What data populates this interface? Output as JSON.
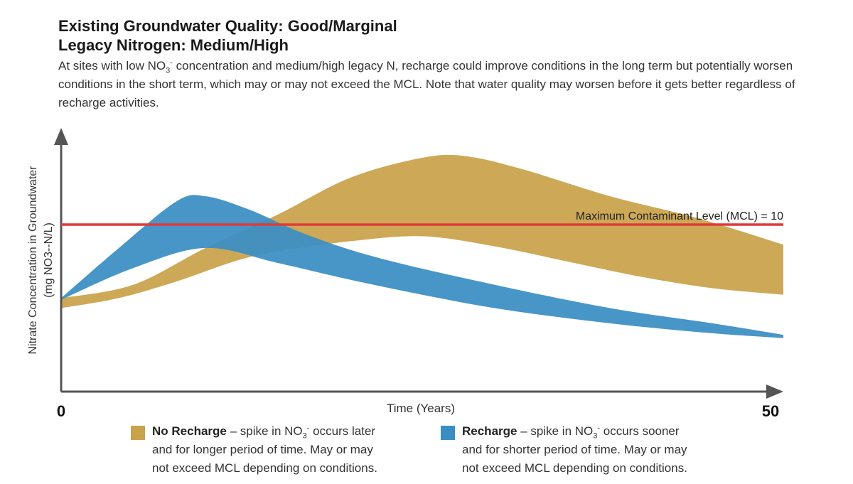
{
  "header": {
    "title_line1": "Existing Groundwater Quality: Good/Marginal",
    "title_line2": "Legacy Nitrogen: Medium/High",
    "desc_part1": "At sites with low NO",
    "desc_sub": "3",
    "desc_sup": "-",
    "desc_part2": " concentration and medium/high legacy N, recharge could improve conditions in the long term but potentially worsen conditions in the short term, which may or may not exceed the MCL. Note that water quality may worsen before it gets better regardless of recharge activities."
  },
  "chart_data": {
    "type": "area",
    "xlabel": "Time (Years)",
    "ylabel_line1": "Nitrate Concentration in Groundwater",
    "ylabel_line2": "(mg NO3--N/L)",
    "x_tick_min": "0",
    "x_tick_max": "50",
    "xlim": [
      0,
      50
    ],
    "mcl_label": "Maximum Contaminant Level (MCL) = 10",
    "mcl_value": 10,
    "mcl_color": "#e03a3a",
    "series": [
      {
        "name": "No Recharge",
        "color": "#c9a24a",
        "upper": [
          [
            0,
            5.6
          ],
          [
            5,
            6.4
          ],
          [
            10,
            8.6
          ],
          [
            15,
            10.6
          ],
          [
            20,
            12.8
          ],
          [
            25,
            14.0
          ],
          [
            28,
            14.1
          ],
          [
            32,
            13.3
          ],
          [
            38,
            11.7
          ],
          [
            44,
            10.4
          ],
          [
            50,
            8.8
          ]
        ],
        "lower": [
          [
            0,
            5.0
          ],
          [
            4,
            5.6
          ],
          [
            8,
            6.6
          ],
          [
            12,
            7.8
          ],
          [
            15,
            8.4
          ],
          [
            20,
            9.0
          ],
          [
            25,
            9.3
          ],
          [
            30,
            8.7
          ],
          [
            35,
            7.8
          ],
          [
            40,
            6.9
          ],
          [
            45,
            6.2
          ],
          [
            50,
            5.8
          ]
        ]
      },
      {
        "name": "Recharge",
        "color": "#3a8ec4",
        "upper": [
          [
            0,
            5.6
          ],
          [
            4,
            8.6
          ],
          [
            8,
            11.4
          ],
          [
            10,
            11.7
          ],
          [
            13,
            10.9
          ],
          [
            17,
            9.4
          ],
          [
            22,
            8.0
          ],
          [
            30,
            6.4
          ],
          [
            38,
            5.0
          ],
          [
            45,
            4.1
          ],
          [
            50,
            3.4
          ]
        ],
        "lower": [
          [
            0,
            5.5
          ],
          [
            5,
            7.4
          ],
          [
            10,
            8.6
          ],
          [
            15,
            7.7
          ],
          [
            20,
            6.7
          ],
          [
            25,
            5.8
          ],
          [
            30,
            5.0
          ],
          [
            35,
            4.4
          ],
          [
            40,
            3.9
          ],
          [
            45,
            3.5
          ],
          [
            50,
            3.2
          ]
        ]
      }
    ]
  },
  "legend": {
    "no_recharge_title": "No Recharge",
    "no_recharge_l1a": " – spike in NO",
    "no_recharge_l1b": " occurs later",
    "no_recharge_l2": "and for longer period of time. May or may",
    "no_recharge_l3": "not exceed MCL depending on conditions.",
    "recharge_title": "Recharge",
    "recharge_l1a": " – spike in NO",
    "recharge_l1b": " occurs sooner",
    "recharge_l2": "and for shorter period of time. May or may",
    "recharge_l3": "not exceed MCL depending on conditions.",
    "sub": "3",
    "sup": "-"
  }
}
